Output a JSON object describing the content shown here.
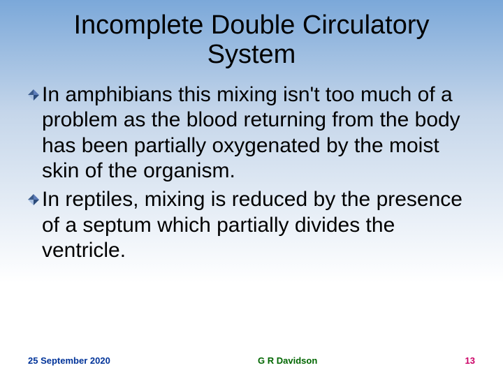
{
  "slide": {
    "title": "Incomplete Double Circulatory System",
    "title_fontsize": 38,
    "title_color": "#000000",
    "background_gradient": {
      "top": "#7ba8d9",
      "mid": "#c5d6ea",
      "bottom": "#ffffff"
    },
    "bullets": [
      {
        "text": "In amphibians this mixing isn't too much of a problem as the blood returning from the body has been partially oxygenated by the moist skin of the organism.",
        "fontsize": 30,
        "text_color": "#000000",
        "marker": {
          "type": "diamond-4way",
          "size": 16,
          "colors": [
            "#5b7bb8",
            "#2a4a7a",
            "#a8bfe0",
            "#3a5a8a"
          ]
        }
      },
      {
        "text": "In reptiles, mixing is reduced by the presence of a septum which partially divides the ventricle.",
        "fontsize": 30,
        "text_color": "#000000",
        "marker": {
          "type": "diamond-4way",
          "size": 16,
          "colors": [
            "#5b7bb8",
            "#2a4a7a",
            "#a8bfe0",
            "#3a5a8a"
          ]
        }
      }
    ]
  },
  "footer": {
    "date": "25 September 2020",
    "author": "G R Davidson",
    "page": "13",
    "fontsize": 13,
    "date_color": "#003399",
    "author_color": "#006600",
    "page_color": "#cc0066"
  }
}
